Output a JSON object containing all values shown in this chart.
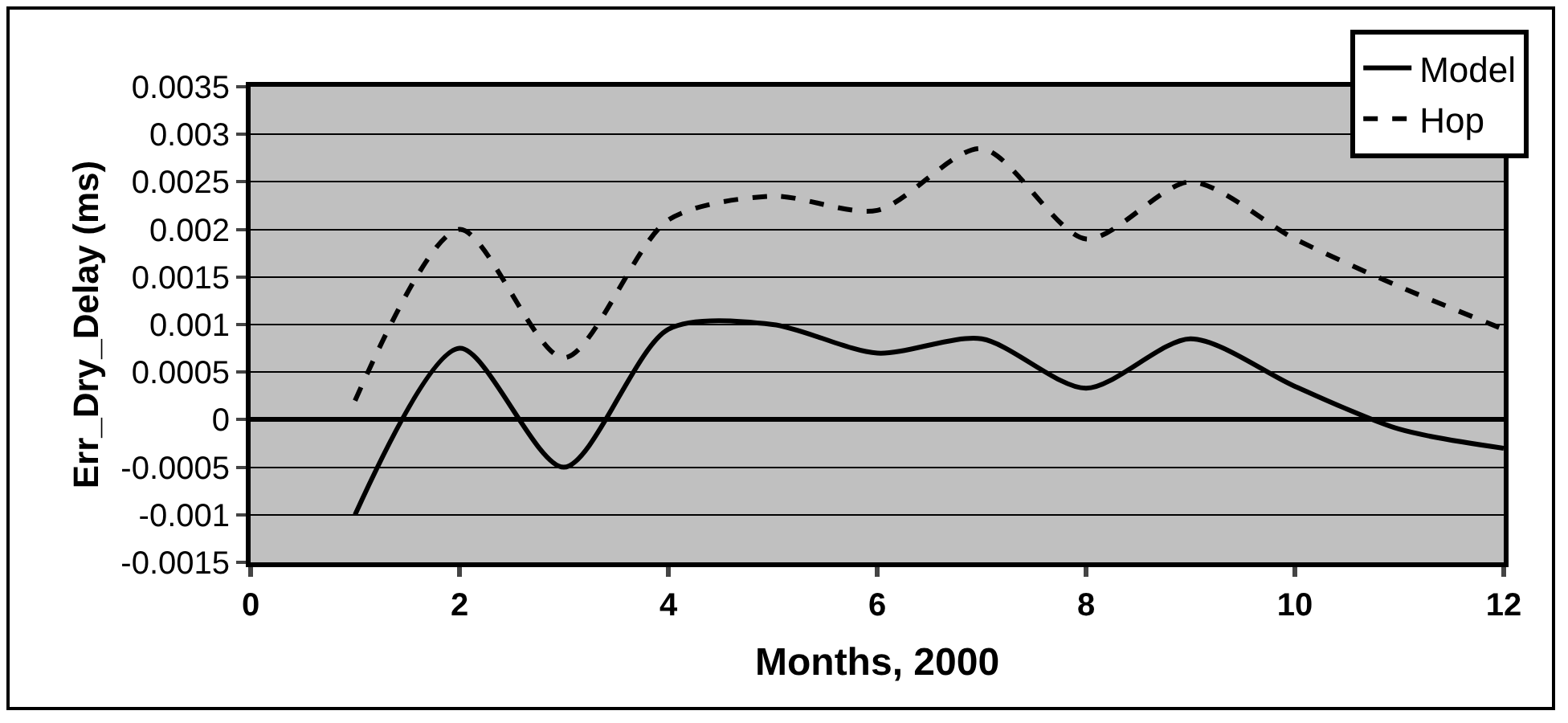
{
  "chart_data": {
    "type": "line",
    "xlabel": "Months, 2000",
    "ylabel": "Err_Dry_Delay (ms)",
    "x": [
      1,
      2,
      3,
      4,
      5,
      6,
      7,
      8,
      9,
      10,
      11,
      12
    ],
    "series": [
      {
        "name": "Model",
        "color": "#000000",
        "line_style": "solid",
        "values": [
          -0.001,
          0.00075,
          -0.0005,
          0.00095,
          0.001,
          0.0007,
          0.00085,
          0.00033,
          0.00085,
          0.00035,
          -0.0001,
          -0.0003
        ]
      },
      {
        "name": "Hop",
        "color": "#000000",
        "line_style": "dashed",
        "values": [
          0.0002,
          0.002,
          0.00065,
          0.0021,
          0.00235,
          0.0022,
          0.00285,
          0.0019,
          0.0025,
          0.0019,
          0.0014,
          0.00095
        ]
      }
    ],
    "xlim": [
      0,
      12
    ],
    "xticks": [
      0,
      2,
      4,
      6,
      8,
      10,
      12
    ],
    "ylim": [
      -0.0015,
      0.0035
    ],
    "yticks": [
      -0.0015,
      -0.001,
      -0.0005,
      0,
      0.0005,
      0.001,
      0.0015,
      0.002,
      0.0025,
      0.003,
      0.0035
    ],
    "grid": "y",
    "legend": "top right",
    "marker": "none"
  }
}
